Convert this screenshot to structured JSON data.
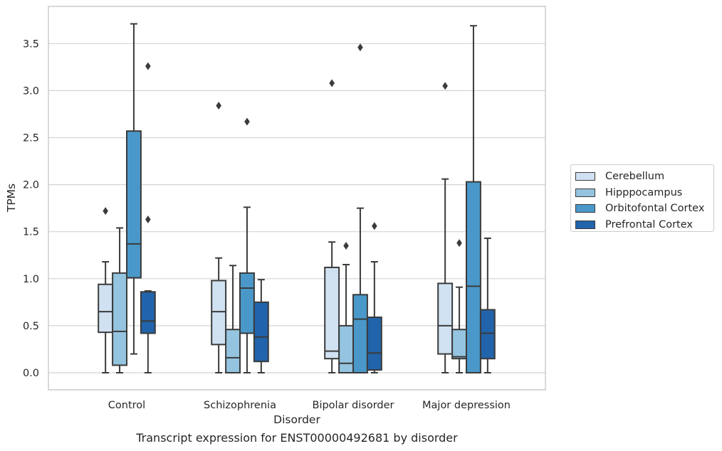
{
  "chart_data": {
    "type": "box",
    "title": "",
    "caption": "Transcript expression for ENST00000492681 by disorder",
    "xlabel": "Disorder",
    "ylabel": "TPMs",
    "ylim": [
      -0.18,
      3.9
    ],
    "yticks": [
      "0.0",
      "0.5",
      "1.0",
      "1.5",
      "2.0",
      "2.5",
      "3.0",
      "3.5"
    ],
    "categories": [
      "Control",
      "Schizophrenia",
      "Bipolar disorder",
      "Major depression"
    ],
    "grid": "horizontal",
    "legend_position": "right",
    "series": [
      {
        "name": "Cerebellum",
        "color": "#d0e1f2",
        "boxes": [
          {
            "whisker_low": 0.0,
            "q1": 0.43,
            "median": 0.65,
            "q3": 0.94,
            "whisker_high": 1.18,
            "outliers": [
              1.72
            ]
          },
          {
            "whisker_low": 0.0,
            "q1": 0.3,
            "median": 0.65,
            "q3": 0.98,
            "whisker_high": 1.22,
            "outliers": [
              2.84
            ]
          },
          {
            "whisker_low": 0.0,
            "q1": 0.15,
            "median": 0.23,
            "q3": 1.12,
            "whisker_high": 1.39,
            "outliers": [
              3.08
            ]
          },
          {
            "whisker_low": 0.0,
            "q1": 0.2,
            "median": 0.5,
            "q3": 0.95,
            "whisker_high": 2.06,
            "outliers": [
              3.05
            ]
          }
        ]
      },
      {
        "name": "Hipppocampus",
        "color": "#94c4df",
        "boxes": [
          {
            "whisker_low": 0.0,
            "q1": 0.08,
            "median": 0.44,
            "q3": 1.06,
            "whisker_high": 1.54,
            "outliers": []
          },
          {
            "whisker_low": 0.0,
            "q1": 0.0,
            "median": 0.16,
            "q3": 0.46,
            "whisker_high": 1.14,
            "outliers": []
          },
          {
            "whisker_low": 0.0,
            "q1": 0.0,
            "median": 0.1,
            "q3": 0.5,
            "whisker_high": 1.15,
            "outliers": [
              1.35
            ]
          },
          {
            "whisker_low": 0.0,
            "q1": 0.15,
            "median": 0.17,
            "q3": 0.46,
            "whisker_high": 0.91,
            "outliers": [
              1.38
            ]
          }
        ]
      },
      {
        "name": "Orbitofontal Cortex",
        "color": "#4a98c9",
        "boxes": [
          {
            "whisker_low": 0.2,
            "q1": 1.01,
            "median": 1.37,
            "q3": 2.57,
            "whisker_high": 3.71,
            "outliers": []
          },
          {
            "whisker_low": 0.0,
            "q1": 0.42,
            "median": 0.9,
            "q3": 1.06,
            "whisker_high": 1.76,
            "outliers": [
              2.67
            ]
          },
          {
            "whisker_low": 0.0,
            "q1": 0.0,
            "median": 0.57,
            "q3": 0.83,
            "whisker_high": 1.75,
            "outliers": [
              3.46
            ]
          },
          {
            "whisker_low": 0.0,
            "q1": 0.0,
            "median": 0.92,
            "q3": 2.03,
            "whisker_high": 3.69,
            "outliers": []
          }
        ]
      },
      {
        "name": "Prefrontal Cortex",
        "color": "#2164ab",
        "boxes": [
          {
            "whisker_low": 0.0,
            "q1": 0.42,
            "median": 0.55,
            "q3": 0.86,
            "whisker_high": 0.87,
            "outliers": [
              3.26,
              1.63
            ]
          },
          {
            "whisker_low": 0.0,
            "q1": 0.12,
            "median": 0.38,
            "q3": 0.75,
            "whisker_high": 0.99,
            "outliers": []
          },
          {
            "whisker_low": 0.0,
            "q1": 0.03,
            "median": 0.21,
            "q3": 0.59,
            "whisker_high": 1.18,
            "outliers": [
              1.56
            ]
          },
          {
            "whisker_low": 0.0,
            "q1": 0.15,
            "median": 0.42,
            "q3": 0.67,
            "whisker_high": 1.43,
            "outliers": []
          }
        ]
      }
    ]
  }
}
